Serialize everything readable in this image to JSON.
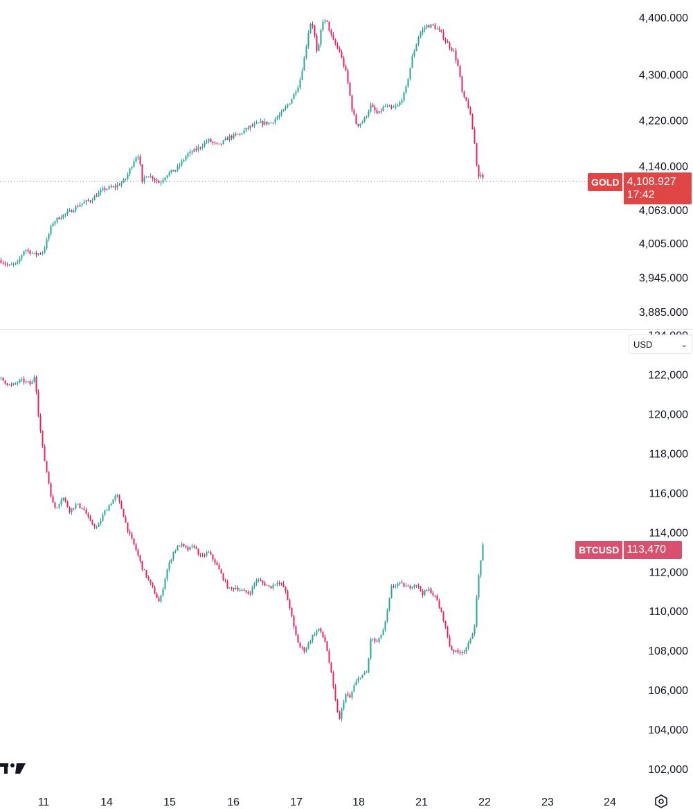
{
  "chart_data": [
    {
      "type": "candlestick",
      "symbol": "GOLD",
      "ylim": [
        3855,
        4430
      ],
      "y_ticks": [
        "4,400.000",
        "4,300.000",
        "4,220.000",
        "4,140.000",
        "4,063.000",
        "4,005.000",
        "3,945.000",
        "3,885.000"
      ],
      "y_tick_values": [
        4400,
        4300,
        4220,
        4140,
        4063,
        4005,
        3945,
        3885
      ],
      "last_price": "4,108.927",
      "last_price_value": 4108.927,
      "countdown": "17:42",
      "up_color": "#26a69a",
      "down_color": "#e91e63",
      "path": [
        [
          0,
          3975
        ],
        [
          12,
          3965
        ],
        [
          25,
          3970
        ],
        [
          35,
          3995
        ],
        [
          50,
          3985
        ],
        [
          62,
          3990
        ],
        [
          75,
          4040
        ],
        [
          85,
          4050
        ],
        [
          100,
          4060
        ],
        [
          115,
          4073
        ],
        [
          130,
          4080
        ],
        [
          150,
          4100
        ],
        [
          165,
          4103
        ],
        [
          180,
          4115
        ],
        [
          195,
          4155
        ],
        [
          200,
          4160
        ],
        [
          205,
          4110
        ],
        [
          210,
          4125
        ],
        [
          220,
          4120
        ],
        [
          230,
          4110
        ],
        [
          240,
          4125
        ],
        [
          255,
          4135
        ],
        [
          270,
          4160
        ],
        [
          285,
          4170
        ],
        [
          300,
          4185
        ],
        [
          315,
          4175
        ],
        [
          330,
          4190
        ],
        [
          345,
          4195
        ],
        [
          360,
          4208
        ],
        [
          375,
          4215
        ],
        [
          390,
          4215
        ],
        [
          405,
          4230
        ],
        [
          420,
          4255
        ],
        [
          432,
          4285
        ],
        [
          440,
          4335
        ],
        [
          447,
          4390
        ],
        [
          452,
          4385
        ],
        [
          458,
          4330
        ],
        [
          465,
          4395
        ],
        [
          472,
          4390
        ],
        [
          480,
          4360
        ],
        [
          490,
          4340
        ],
        [
          500,
          4300
        ],
        [
          508,
          4240
        ],
        [
          515,
          4210
        ],
        [
          525,
          4220
        ],
        [
          535,
          4245
        ],
        [
          545,
          4230
        ],
        [
          555,
          4245
        ],
        [
          565,
          4240
        ],
        [
          575,
          4245
        ],
        [
          585,
          4270
        ],
        [
          595,
          4330
        ],
        [
          605,
          4370
        ],
        [
          615,
          4385
        ],
        [
          625,
          4385
        ],
        [
          635,
          4375
        ],
        [
          645,
          4355
        ],
        [
          655,
          4340
        ],
        [
          662,
          4310
        ],
        [
          668,
          4260
        ],
        [
          675,
          4250
        ],
        [
          680,
          4220
        ],
        [
          685,
          4180
        ],
        [
          690,
          4120
        ],
        [
          695,
          4130
        ],
        [
          698,
          4110
        ]
      ]
    },
    {
      "type": "candlestick",
      "symbol": "BTCUSD",
      "ylim": [
        101300,
        124300
      ],
      "y_ticks": [
        "124,000",
        "122,000",
        "120,000",
        "118,000",
        "116,000",
        "114,000",
        "112,000",
        "110,000",
        "108,000",
        "106,000",
        "104,000",
        "102,000"
      ],
      "y_tick_values": [
        124000,
        122000,
        120000,
        118000,
        116000,
        114000,
        112000,
        110000,
        108000,
        106000,
        104000,
        102000
      ],
      "last_price": "113,470",
      "last_price_value": 113470,
      "currency": "USD",
      "up_color": "#26a69a",
      "down_color": "#e91e63",
      "path": [
        [
          0,
          121800
        ],
        [
          15,
          121400
        ],
        [
          30,
          121700
        ],
        [
          45,
          121500
        ],
        [
          50,
          122000
        ],
        [
          55,
          120000
        ],
        [
          62,
          118000
        ],
        [
          70,
          116500
        ],
        [
          75,
          115500
        ],
        [
          80,
          115200
        ],
        [
          90,
          115800
        ],
        [
          100,
          115100
        ],
        [
          110,
          115400
        ],
        [
          120,
          115200
        ],
        [
          130,
          114500
        ],
        [
          140,
          114200
        ],
        [
          150,
          115000
        ],
        [
          160,
          115500
        ],
        [
          168,
          115900
        ],
        [
          175,
          115200
        ],
        [
          185,
          114000
        ],
        [
          195,
          113200
        ],
        [
          205,
          112200
        ],
        [
          215,
          111500
        ],
        [
          222,
          111000
        ],
        [
          230,
          110400
        ],
        [
          240,
          112000
        ],
        [
          250,
          113000
        ],
        [
          260,
          113400
        ],
        [
          270,
          113100
        ],
        [
          280,
          113300
        ],
        [
          290,
          112700
        ],
        [
          300,
          113000
        ],
        [
          310,
          112500
        ],
        [
          320,
          111800
        ],
        [
          330,
          111100
        ],
        [
          340,
          111200
        ],
        [
          350,
          111000
        ],
        [
          360,
          110900
        ],
        [
          370,
          111600
        ],
        [
          380,
          111400
        ],
        [
          390,
          111200
        ],
        [
          400,
          111500
        ],
        [
          410,
          111200
        ],
        [
          418,
          110200
        ],
        [
          425,
          109000
        ],
        [
          432,
          108200
        ],
        [
          440,
          108000
        ],
        [
          450,
          108700
        ],
        [
          460,
          109100
        ],
        [
          470,
          108400
        ],
        [
          478,
          106800
        ],
        [
          485,
          105200
        ],
        [
          490,
          104500
        ],
        [
          498,
          105800
        ],
        [
          505,
          105600
        ],
        [
          512,
          106300
        ],
        [
          520,
          106700
        ],
        [
          530,
          106900
        ],
        [
          535,
          108600
        ],
        [
          545,
          108400
        ],
        [
          555,
          109200
        ],
        [
          565,
          111200
        ],
        [
          575,
          111400
        ],
        [
          590,
          111200
        ],
        [
          600,
          111400
        ],
        [
          610,
          110900
        ],
        [
          620,
          111100
        ],
        [
          630,
          110600
        ],
        [
          640,
          109600
        ],
        [
          650,
          108100
        ],
        [
          660,
          107900
        ],
        [
          670,
          108000
        ],
        [
          678,
          108400
        ],
        [
          685,
          109300
        ],
        [
          690,
          111500
        ],
        [
          695,
          112900
        ],
        [
          698,
          113470
        ]
      ]
    }
  ],
  "x_axis": {
    "labels": [
      "11",
      "14",
      "15",
      "16",
      "17",
      "18",
      "21",
      "22",
      "23",
      "24"
    ],
    "positions": [
      63,
      154,
      245,
      337,
      428,
      518,
      609,
      700,
      791,
      881
    ]
  },
  "icons": {
    "logo": "tradingview-logo-icon",
    "settings": "settings-icon"
  }
}
